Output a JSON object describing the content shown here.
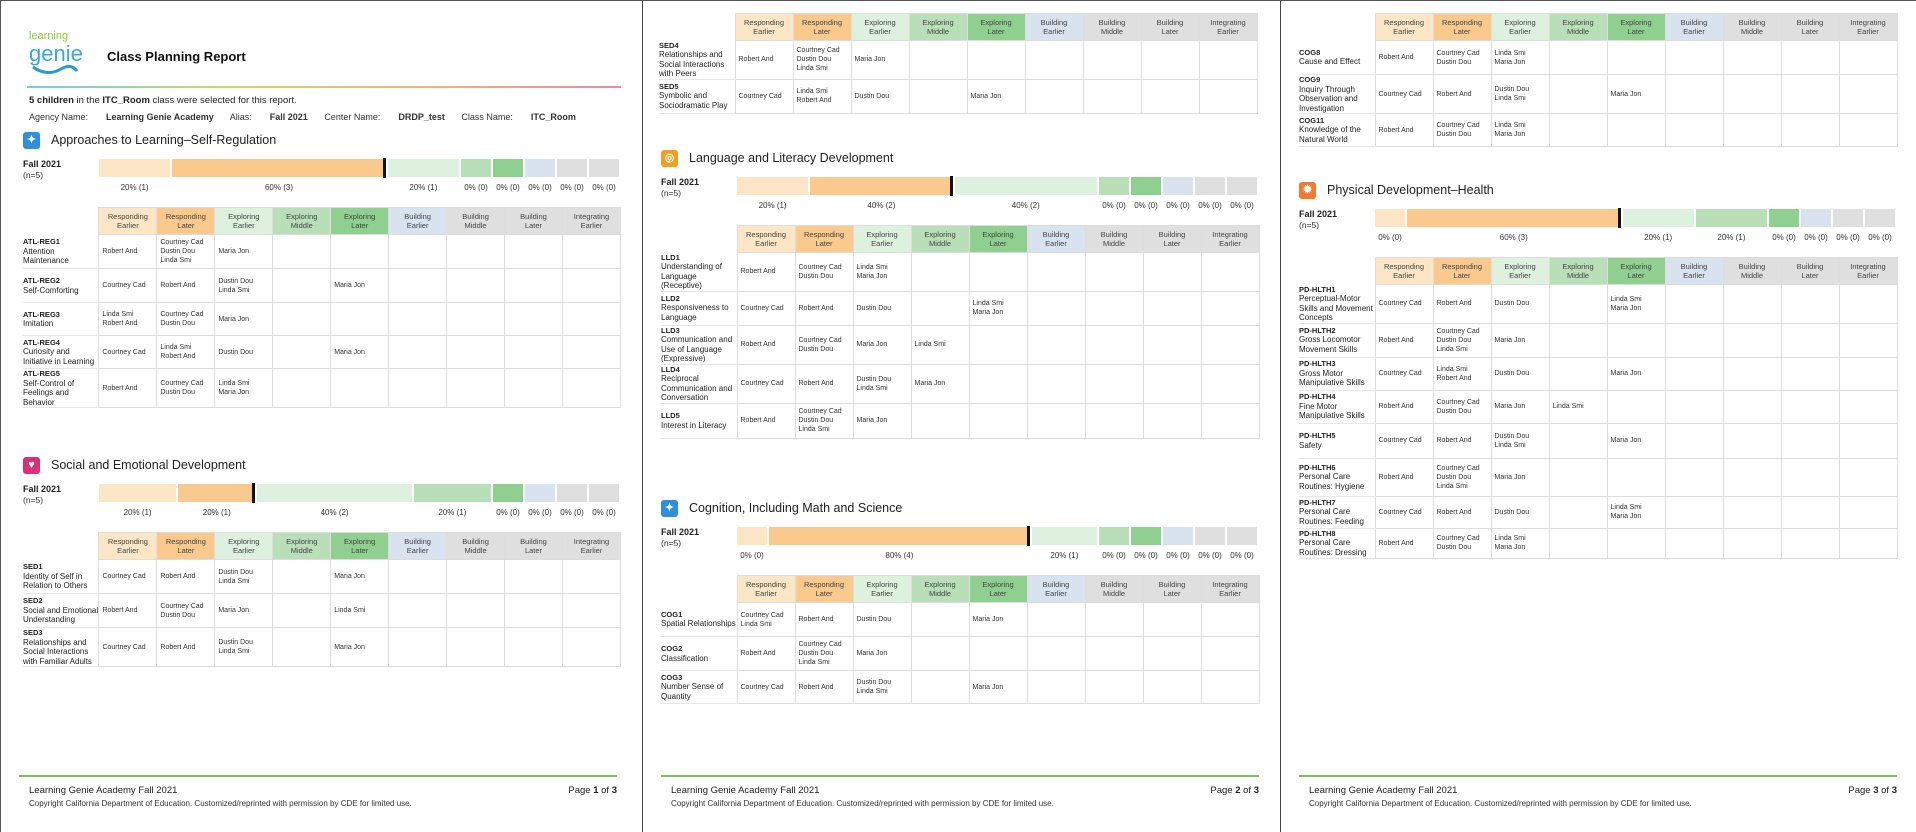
{
  "report": {
    "title": "Class Planning Report",
    "count": "5 children",
    "count_suffix": " in the ",
    "room": "ITC_Room",
    "count_tail": " class were selected for this report.",
    "agency_label": "Agency Name:",
    "agency": "Learning Genie Academy",
    "alias_label": "Alias:",
    "alias": "Fall 2021",
    "center_label": "Center Name:",
    "center": "DRDP_test",
    "class_label": "Class Name:",
    "class_name": "ITC_Room",
    "logo_text_1": "learning",
    "logo_text_2": "genie"
  },
  "levels": [
    {
      "line1": "Responding",
      "line2": "Earlier"
    },
    {
      "line1": "Responding",
      "line2": "Later"
    },
    {
      "line1": "Exploring",
      "line2": "Earlier"
    },
    {
      "line1": "Exploring",
      "line2": "Middle"
    },
    {
      "line1": "Exploring",
      "line2": "Later"
    },
    {
      "line1": "Building",
      "line2": "Earlier"
    },
    {
      "line1": "Building",
      "line2": "Middle"
    },
    {
      "line1": "Building",
      "line2": "Later"
    },
    {
      "line1": "Integrating",
      "line2": "Earlier"
    }
  ],
  "colors": {
    "levels": [
      "#fde6c6",
      "#f9c98d",
      "#def0de",
      "#b9dfb9",
      "#8fcf90",
      "#d9e3f0",
      "#dfdfdf",
      "#dfdfdf",
      "#dfdfdf"
    ],
    "footer_line": "#7bbf58"
  },
  "footer": {
    "text": "Learning Genie Academy Fall 2021",
    "copyright": "Copyright California Department of Education. Customized/reprinted with permission by CDE for limited use.",
    "page_word": "Page",
    "of_word": "of",
    "total": "3"
  },
  "sections": [
    {
      "id": "atl",
      "title": "Approaches to Learning–Self-Regulation",
      "icon": "puzzle-icon",
      "icon_color": "#2f8fd8",
      "season": "Fall 2021",
      "n": "(n=5)",
      "progress": [
        {
          "label": "20% (1)",
          "fraction": 0.2
        },
        {
          "label": "60% (3)",
          "fraction": 0.6
        },
        {
          "label": "20% (1)",
          "fraction": 0.2
        },
        {
          "label": "0% (0)",
          "fraction": 0
        },
        {
          "label": "0% (0)",
          "fraction": 0
        },
        {
          "label": "0% (0)",
          "fraction": 0
        },
        {
          "label": "0% (0)",
          "fraction": 0
        },
        {
          "label": "0% (0)",
          "fraction": 0
        }
      ],
      "marker_level": 1,
      "rows": [
        {
          "code": "ATL-REG1",
          "name": "Attention Maintenance",
          "cells": [
            [
              "Robert And"
            ],
            [
              "Courtney Cad",
              "Dustin Dou",
              "Linda Smi"
            ],
            [
              "Maria Jon"
            ],
            [],
            [],
            [],
            [],
            [],
            []
          ]
        },
        {
          "code": "ATL-REG2",
          "name": "Self-Comforting",
          "cells": [
            [
              "Courtney Cad"
            ],
            [
              "Robert And"
            ],
            [
              "Dustin Dou",
              "Linda Smi"
            ],
            [],
            [
              "Maria Jon"
            ],
            [],
            [],
            [],
            []
          ]
        },
        {
          "code": "ATL-REG3",
          "name": "Imitation",
          "cells": [
            [
              "Linda Smi",
              "Robert And"
            ],
            [
              "Courtney Cad",
              "Dustin Dou"
            ],
            [
              "Maria Jon"
            ],
            [],
            [],
            [],
            [],
            [],
            []
          ]
        },
        {
          "code": "ATL-REG4",
          "name": "Curiosity and Initiative in Learning",
          "cells": [
            [
              "Courtney Cad"
            ],
            [
              "Linda Smi",
              "Robert And"
            ],
            [
              "Dustin Dou"
            ],
            [],
            [
              "Maria Jon"
            ],
            [],
            [],
            [],
            []
          ]
        },
        {
          "code": "ATL-REG5",
          "name": "Self-Control of Feelings and Behavior",
          "cells": [
            [
              "Robert And"
            ],
            [
              "Courtney Cad",
              "Dustin Dou"
            ],
            [
              "Linda Smi",
              "Maria Jon"
            ],
            [],
            [],
            [],
            [],
            [],
            []
          ]
        }
      ]
    },
    {
      "id": "sed",
      "title": "Social and Emotional Development",
      "icon": "heart-icon",
      "icon_color": "#d9307a",
      "season": "Fall 2021",
      "n": "(n=5)",
      "progress": [
        {
          "label": "20% (1)",
          "fraction": 0.2
        },
        {
          "label": "20% (1)",
          "fraction": 0.2
        },
        {
          "label": "40% (2)",
          "fraction": 0.4
        },
        {
          "label": "20% (1)",
          "fraction": 0.2
        },
        {
          "label": "0% (0)",
          "fraction": 0
        },
        {
          "label": "0% (0)",
          "fraction": 0
        },
        {
          "label": "0% (0)",
          "fraction": 0
        },
        {
          "label": "0% (0)",
          "fraction": 0
        }
      ],
      "marker_level": 1,
      "rows": [
        {
          "code": "SED1",
          "name": "Identity of Self in Relation to Others",
          "cells": [
            [
              "Courtney Cad"
            ],
            [
              "Robert And"
            ],
            [
              "Dustin Dou",
              "Linda Smi"
            ],
            [],
            [
              "Maria Jon"
            ],
            [],
            [],
            [],
            []
          ]
        },
        {
          "code": "SED2",
          "name": "Social and Emotional Understanding",
          "cells": [
            [
              "Robert And"
            ],
            [
              "Courtney Cad",
              "Dustin Dou"
            ],
            [
              "Maria Jon"
            ],
            [],
            [
              "Linda Smi"
            ],
            [],
            [],
            [],
            []
          ]
        },
        {
          "code": "SED3",
          "name": "Relationships and Social Interactions with Familiar Adults",
          "cells": [
            [
              "Courtney Cad"
            ],
            [
              "Robert And"
            ],
            [
              "Dustin Dou",
              "Linda Smi"
            ],
            [],
            [
              "Maria Jon"
            ],
            [],
            [],
            [],
            []
          ]
        }
      ]
    },
    {
      "id": "sed_cont",
      "title": "",
      "rows": [
        {
          "code": "SED4",
          "name": "Relationships and Social Interactions with Peers",
          "cells": [
            [
              "Robert And"
            ],
            [
              "Courtney Cad",
              "Dustin Dou",
              "Linda Smi"
            ],
            [
              "Maria Jon"
            ],
            [],
            [],
            [],
            [],
            [],
            []
          ]
        },
        {
          "code": "SED5",
          "name": "Symbolic and Sociodramatic Play",
          "cells": [
            [
              "Courtney Cad"
            ],
            [
              "Linda Smi",
              "Robert And"
            ],
            [
              "Dustin Dou"
            ],
            [],
            [
              "Maria Jon"
            ],
            [],
            [],
            [],
            []
          ]
        }
      ]
    },
    {
      "id": "lld",
      "title": "Language and Literacy Development",
      "icon": "book-icon",
      "icon_color": "#f0a020",
      "season": "Fall 2021",
      "n": "(n=5)",
      "progress": [
        {
          "label": "20% (1)",
          "fraction": 0.2
        },
        {
          "label": "40% (2)",
          "fraction": 0.4
        },
        {
          "label": "40% (2)",
          "fraction": 0.4
        },
        {
          "label": "0% (0)",
          "fraction": 0
        },
        {
          "label": "0% (0)",
          "fraction": 0
        },
        {
          "label": "0% (0)",
          "fraction": 0
        },
        {
          "label": "0% (0)",
          "fraction": 0
        },
        {
          "label": "0% (0)",
          "fraction": 0
        }
      ],
      "marker_level": 1,
      "rows": [
        {
          "code": "LLD1",
          "name": "Understanding of Language (Receptive)",
          "cells": [
            [
              "Robert And"
            ],
            [
              "Courtney Cad",
              "Dustin Dou"
            ],
            [
              "Linda Smi",
              "Maria Jon"
            ],
            [],
            [],
            [],
            [],
            [],
            []
          ]
        },
        {
          "code": "LLD2",
          "name": "Responsiveness to Language",
          "cells": [
            [
              "Courtney Cad"
            ],
            [
              "Robert And"
            ],
            [
              "Dustin Dou"
            ],
            [],
            [
              "Linda Smi",
              "Maria Jon"
            ],
            [],
            [],
            [],
            []
          ]
        },
        {
          "code": "LLD3",
          "name": "Communication and Use of Language (Expressive)",
          "cells": [
            [
              "Robert And"
            ],
            [
              "Courtney Cad",
              "Dustin Dou"
            ],
            [
              "Maria Jon"
            ],
            [
              "Linda Smi"
            ],
            [],
            [],
            [],
            [],
            []
          ]
        },
        {
          "code": "LLD4",
          "name": "Reciprocal Communication and Conversation",
          "cells": [
            [
              "Courtney Cad"
            ],
            [
              "Robert And"
            ],
            [
              "Dustin Dou",
              "Linda Smi"
            ],
            [
              "Maria Jon"
            ],
            [],
            [],
            [],
            [],
            []
          ]
        },
        {
          "code": "LLD5",
          "name": "Interest in Literacy",
          "cells": [
            [
              "Robert And"
            ],
            [
              "Courtney Cad",
              "Dustin Dou",
              "Linda Smi"
            ],
            [
              "Maria Jon"
            ],
            [],
            [],
            [],
            [],
            [],
            []
          ]
        }
      ]
    },
    {
      "id": "cog",
      "title": "Cognition, Including Math and Science",
      "icon": "puzzle-icon",
      "icon_color": "#2f8fd8",
      "season": "Fall 2021",
      "n": "(n=5)",
      "progress": [
        {
          "label": "0% (0)",
          "fraction": 0
        },
        {
          "label": "80% (4)",
          "fraction": 0.8
        },
        {
          "label": "20% (1)",
          "fraction": 0.2
        },
        {
          "label": "0% (0)",
          "fraction": 0
        },
        {
          "label": "0% (0)",
          "fraction": 0
        },
        {
          "label": "0% (0)",
          "fraction": 0
        },
        {
          "label": "0% (0)",
          "fraction": 0
        },
        {
          "label": "0% (0)",
          "fraction": 0
        }
      ],
      "marker_level": 1,
      "rows": [
        {
          "code": "COG1",
          "name": "Spatial Relationships",
          "cells": [
            [
              "Courtney Cad",
              "Linda Smi"
            ],
            [
              "Robert And"
            ],
            [
              "Dustin Dou"
            ],
            [],
            [
              "Maria Jon"
            ],
            [],
            [],
            [],
            []
          ]
        },
        {
          "code": "COG2",
          "name": "Classification",
          "cells": [
            [
              "Robert And"
            ],
            [
              "Courtney Cad",
              "Dustin Dou",
              "Linda Smi"
            ],
            [
              "Maria Jon"
            ],
            [],
            [],
            [],
            [],
            [],
            []
          ]
        },
        {
          "code": "COG3",
          "name": "Number Sense of Quantity",
          "cells": [
            [
              "Courtney Cad"
            ],
            [
              "Robert And"
            ],
            [
              "Dustin Dou",
              "Linda Smi"
            ],
            [],
            [
              "Maria Jon"
            ],
            [],
            [],
            [],
            []
          ]
        }
      ]
    },
    {
      "id": "cog_cont",
      "title": "",
      "rows": [
        {
          "code": "COG8",
          "name": "Cause and Effect",
          "cells": [
            [
              "Robert And"
            ],
            [
              "Courtney Cad",
              "Dustin Dou"
            ],
            [
              "Linda Smi",
              "Maria Jon"
            ],
            [],
            [],
            [],
            [],
            [],
            []
          ]
        },
        {
          "code": "COG9",
          "name": "Inquiry Through Observation and Investigation",
          "cells": [
            [
              "Courtney Cad"
            ],
            [
              "Robert And"
            ],
            [
              "Dustin Dou",
              "Linda Smi"
            ],
            [],
            [
              "Maria Jon"
            ],
            [],
            [],
            [],
            []
          ]
        },
        {
          "code": "COG11",
          "name": "Knowledge of the Natural World",
          "cells": [
            [
              "Robert And"
            ],
            [
              "Courtney Cad",
              "Dustin Dou"
            ],
            [
              "Linda Smi",
              "Maria Jon"
            ],
            [],
            [],
            [],
            [],
            [],
            []
          ]
        }
      ]
    },
    {
      "id": "pd",
      "title": "Physical Development–Health",
      "icon": "sun-icon",
      "icon_color": "#ef7a30",
      "season": "Fall 2021",
      "n": "(n=5)",
      "progress": [
        {
          "label": "0% (0)",
          "fraction": 0
        },
        {
          "label": "60% (3)",
          "fraction": 0.6
        },
        {
          "label": "20% (1)",
          "fraction": 0.2
        },
        {
          "label": "20% (1)",
          "fraction": 0.2
        },
        {
          "label": "0% (0)",
          "fraction": 0
        },
        {
          "label": "0% (0)",
          "fraction": 0
        },
        {
          "label": "0% (0)",
          "fraction": 0
        },
        {
          "label": "0% (0)",
          "fraction": 0
        }
      ],
      "marker_level": 1,
      "rows": [
        {
          "code": "PD-HLTH1",
          "name": "Perceptual-Motor Skills and Movement Concepts",
          "cells": [
            [
              "Courtney Cad"
            ],
            [
              "Robert And"
            ],
            [
              "Dustin Dou"
            ],
            [],
            [
              "Linda Smi",
              "Maria Jon"
            ],
            [],
            [],
            [],
            []
          ]
        },
        {
          "code": "PD-HLTH2",
          "name": "Gross Locomotor Movement Skills",
          "cells": [
            [
              "Robert And"
            ],
            [
              "Courtney Cad",
              "Dustin Dou",
              "Linda Smi"
            ],
            [
              "Maria Jon"
            ],
            [],
            [],
            [],
            [],
            [],
            []
          ]
        },
        {
          "code": "PD-HLTH3",
          "name": "Gross Motor Manipulative Skills",
          "cells": [
            [
              "Courtney Cad"
            ],
            [
              "Linda Smi",
              "Robert And"
            ],
            [
              "Dustin Dou"
            ],
            [],
            [
              "Maria Jon"
            ],
            [],
            [],
            [],
            []
          ]
        },
        {
          "code": "PD-HLTH4",
          "name": "Fine Motor Manipulative Skills",
          "cells": [
            [
              "Robert And"
            ],
            [
              "Courtney Cad",
              "Dustin Dou"
            ],
            [
              "Maria Jon"
            ],
            [
              "Linda Smi"
            ],
            [],
            [],
            [],
            [],
            []
          ]
        },
        {
          "code": "PD-HLTH5",
          "name": "Safety",
          "cells": [
            [
              "Courtney Cad"
            ],
            [
              "Robert And"
            ],
            [
              "Dustin Dou",
              "Linda Smi"
            ],
            [],
            [
              "Maria Jon"
            ],
            [],
            [],
            [],
            []
          ]
        },
        {
          "code": "PD-HLTH6",
          "name": "Personal Care Routines: Hygiene",
          "cells": [
            [
              "Robert And"
            ],
            [
              "Courtney Cad",
              "Dustin Dou",
              "Linda Smi"
            ],
            [
              "Maria Jon"
            ],
            [],
            [],
            [],
            [],
            [],
            []
          ]
        },
        {
          "code": "PD-HLTH7",
          "name": "Personal Care Routines: Feeding",
          "cells": [
            [
              "Courtney Cad"
            ],
            [
              "Robert And"
            ],
            [
              "Dustin Dou"
            ],
            [],
            [
              "Linda Smi",
              "Maria Jon"
            ],
            [],
            [],
            [],
            []
          ]
        },
        {
          "code": "PD-HLTH8",
          "name": "Personal Care Routines: Dressing",
          "cells": [
            [
              "Robert And"
            ],
            [
              "Courtney Cad",
              "Dustin Dou"
            ],
            [
              "Linda Smi",
              "Maria Jon"
            ],
            [],
            [],
            [],
            [],
            [],
            []
          ]
        }
      ]
    }
  ],
  "pages": [
    {
      "number": "1"
    },
    {
      "number": "2"
    },
    {
      "number": "3"
    }
  ]
}
